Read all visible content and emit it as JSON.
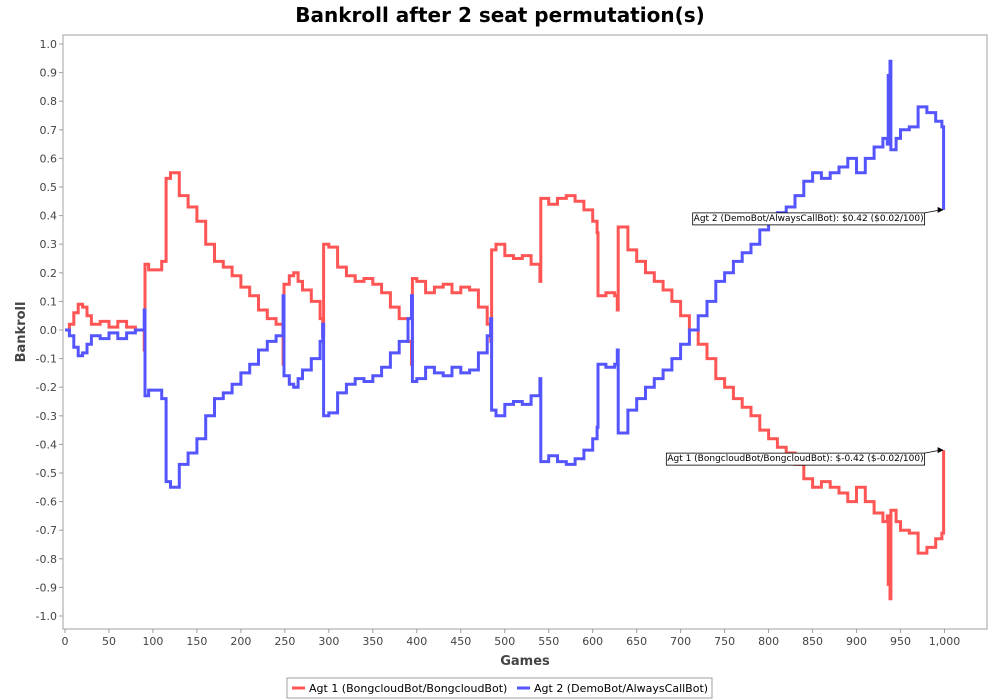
{
  "chart_data": {
    "type": "line",
    "title": "Bankroll after 2 seat permutation(s)",
    "xlabel": "Games",
    "ylabel": "Bankroll",
    "xlim": [
      0,
      1000
    ],
    "ylim": [
      -1.05,
      1.05
    ],
    "xticks": [
      0,
      50,
      100,
      150,
      200,
      250,
      300,
      350,
      400,
      450,
      500,
      550,
      600,
      650,
      700,
      750,
      800,
      850,
      900,
      950,
      1000
    ],
    "xtick_labels": [
      "0",
      "50",
      "100",
      "150",
      "200",
      "250",
      "300",
      "350",
      "400",
      "450",
      "500",
      "550",
      "600",
      "650",
      "700",
      "750",
      "800",
      "850",
      "900",
      "950",
      "1,000"
    ],
    "yticks": [
      1.0,
      0.9,
      0.8,
      0.7,
      0.6,
      0.5,
      0.4,
      0.3,
      0.2,
      0.1,
      0.0,
      -0.1,
      -0.2,
      -0.3,
      -0.4,
      -0.5,
      -0.6,
      -0.7,
      -0.8,
      -0.9,
      -1.0
    ],
    "ytick_labels": [
      "1.0",
      "0.9",
      "0.8",
      "0.7",
      "0.6",
      "0.5",
      "0.4",
      "0.3",
      "0.2",
      "0.1",
      "0.0",
      "-0.1",
      "-0.2",
      "-0.3",
      "-0.4",
      "-0.5",
      "-0.6",
      "-0.7",
      "-0.8",
      "-0.9",
      "-1.0"
    ],
    "grid": false,
    "legend_position": "bottom",
    "series": [
      {
        "name": "Agt 1 (BongcloudBot/BongcloudBot)",
        "color": "#ff5555",
        "x": [
          0,
          5,
          10,
          15,
          20,
          25,
          30,
          40,
          50,
          60,
          70,
          80,
          90,
          91,
          95,
          100,
          110,
          115,
          120,
          125,
          130,
          140,
          150,
          160,
          170,
          180,
          190,
          200,
          210,
          220,
          230,
          240,
          248,
          249,
          255,
          260,
          265,
          270,
          280,
          290,
          293,
          294,
          300,
          310,
          320,
          330,
          340,
          350,
          360,
          370,
          380,
          390,
          394,
          395,
          400,
          410,
          420,
          430,
          440,
          450,
          460,
          470,
          480,
          484,
          485,
          490,
          500,
          510,
          520,
          530,
          540,
          541,
          550,
          560,
          570,
          580,
          590,
          600,
          605,
          606,
          615,
          625,
          628,
          629,
          640,
          650,
          660,
          670,
          680,
          690,
          700,
          710,
          720,
          730,
          740,
          750,
          760,
          770,
          780,
          790,
          800,
          810,
          820,
          830,
          840,
          850,
          860,
          870,
          880,
          890,
          900,
          910,
          920,
          930,
          935,
          936,
          938,
          939,
          945,
          950,
          960,
          970,
          980,
          990,
          997,
          999
        ],
        "y": [
          0.0,
          0.02,
          0.06,
          0.09,
          0.08,
          0.05,
          0.02,
          0.03,
          0.01,
          0.03,
          0.01,
          0.0,
          -0.07,
          0.23,
          0.21,
          0.21,
          0.24,
          0.53,
          0.55,
          0.55,
          0.47,
          0.43,
          0.38,
          0.3,
          0.24,
          0.22,
          0.19,
          0.15,
          0.12,
          0.07,
          0.04,
          0.02,
          -0.12,
          0.16,
          0.19,
          0.2,
          0.17,
          0.14,
          0.1,
          0.04,
          -0.02,
          0.3,
          0.29,
          0.22,
          0.19,
          0.17,
          0.18,
          0.16,
          0.13,
          0.08,
          0.04,
          -0.04,
          -0.12,
          0.18,
          0.17,
          0.13,
          0.15,
          0.16,
          0.13,
          0.15,
          0.14,
          0.08,
          0.02,
          -0.04,
          0.28,
          0.3,
          0.26,
          0.25,
          0.26,
          0.23,
          0.17,
          0.46,
          0.44,
          0.46,
          0.47,
          0.45,
          0.42,
          0.38,
          0.34,
          0.12,
          0.13,
          0.12,
          0.07,
          0.36,
          0.28,
          0.24,
          0.2,
          0.17,
          0.14,
          0.1,
          0.05,
          0.0,
          -0.05,
          -0.1,
          -0.17,
          -0.2,
          -0.24,
          -0.27,
          -0.3,
          -0.35,
          -0.38,
          -0.41,
          -0.43,
          -0.47,
          -0.52,
          -0.55,
          -0.53,
          -0.55,
          -0.57,
          -0.6,
          -0.55,
          -0.6,
          -0.64,
          -0.67,
          -0.65,
          -0.89,
          -0.94,
          -0.63,
          -0.67,
          -0.7,
          -0.71,
          -0.78,
          -0.76,
          -0.73,
          -0.71,
          -0.42
        ]
      },
      {
        "name": "Agt 2 (DemoBot/AlwaysCallBot)",
        "color": "#5555ff",
        "x": [
          0,
          5,
          10,
          15,
          20,
          25,
          30,
          40,
          50,
          60,
          70,
          80,
          90,
          91,
          95,
          100,
          110,
          115,
          120,
          125,
          130,
          140,
          150,
          160,
          170,
          180,
          190,
          200,
          210,
          220,
          230,
          240,
          248,
          249,
          255,
          260,
          265,
          270,
          280,
          290,
          293,
          294,
          300,
          310,
          320,
          330,
          340,
          350,
          360,
          370,
          380,
          390,
          394,
          395,
          400,
          410,
          420,
          430,
          440,
          450,
          460,
          470,
          480,
          484,
          485,
          490,
          500,
          510,
          520,
          530,
          540,
          541,
          550,
          560,
          570,
          580,
          590,
          600,
          605,
          606,
          615,
          625,
          628,
          629,
          640,
          650,
          660,
          670,
          680,
          690,
          700,
          710,
          720,
          730,
          740,
          750,
          760,
          770,
          780,
          790,
          800,
          810,
          820,
          830,
          840,
          850,
          860,
          870,
          880,
          890,
          900,
          910,
          920,
          930,
          935,
          936,
          938,
          939,
          945,
          950,
          960,
          970,
          980,
          990,
          997,
          999
        ],
        "y": [
          0.0,
          -0.02,
          -0.06,
          -0.09,
          -0.08,
          -0.05,
          -0.02,
          -0.03,
          -0.01,
          -0.03,
          -0.01,
          0.0,
          0.07,
          -0.23,
          -0.21,
          -0.21,
          -0.24,
          -0.53,
          -0.55,
          -0.55,
          -0.47,
          -0.43,
          -0.38,
          -0.3,
          -0.24,
          -0.22,
          -0.19,
          -0.15,
          -0.12,
          -0.07,
          -0.04,
          -0.02,
          0.12,
          -0.16,
          -0.19,
          -0.2,
          -0.17,
          -0.14,
          -0.1,
          -0.04,
          0.02,
          -0.3,
          -0.29,
          -0.22,
          -0.19,
          -0.17,
          -0.18,
          -0.16,
          -0.13,
          -0.08,
          -0.04,
          0.04,
          0.12,
          -0.18,
          -0.17,
          -0.13,
          -0.15,
          -0.16,
          -0.13,
          -0.15,
          -0.14,
          -0.08,
          -0.02,
          0.04,
          -0.28,
          -0.3,
          -0.26,
          -0.25,
          -0.26,
          -0.23,
          -0.17,
          -0.46,
          -0.44,
          -0.46,
          -0.47,
          -0.45,
          -0.42,
          -0.38,
          -0.34,
          -0.12,
          -0.13,
          -0.12,
          -0.07,
          -0.36,
          -0.28,
          -0.24,
          -0.2,
          -0.17,
          -0.14,
          -0.1,
          -0.05,
          0.0,
          0.05,
          0.1,
          0.17,
          0.2,
          0.24,
          0.27,
          0.3,
          0.35,
          0.38,
          0.41,
          0.43,
          0.47,
          0.52,
          0.55,
          0.53,
          0.55,
          0.57,
          0.6,
          0.55,
          0.6,
          0.64,
          0.67,
          0.65,
          0.89,
          0.94,
          0.63,
          0.67,
          0.7,
          0.71,
          0.78,
          0.76,
          0.73,
          0.71,
          0.42
        ]
      }
    ],
    "annotations": [
      {
        "text": "Agt 2 (DemoBot/AlwaysCallBot): $0.42 ($0.02/100)",
        "x": 999,
        "y": 0.42,
        "series": 1
      },
      {
        "text": "Agt 1 (BongcloudBot/BongcloudBot): $-0.42 ($-0.02/100)",
        "x": 999,
        "y": -0.42,
        "series": 0
      }
    ]
  }
}
